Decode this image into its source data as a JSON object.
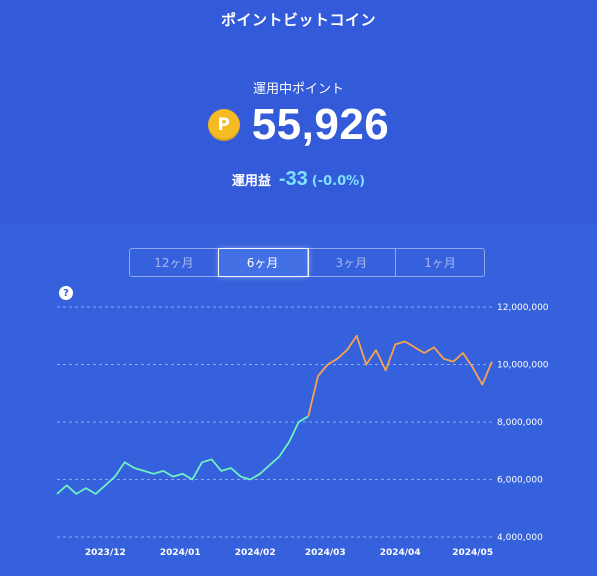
{
  "header": {
    "title": "ポイントビットコイン"
  },
  "summary": {
    "label": "運用中ポイント",
    "coin_symbol": "P",
    "points": "55,926",
    "gain_label": "運用益",
    "gain_value": "-33",
    "gain_pct": "(-0.0%)",
    "colors": {
      "coin": "#f5bb25",
      "gain": "#7ee0ff"
    }
  },
  "tabs": [
    {
      "label": "12ヶ月",
      "active": false
    },
    {
      "label": "6ヶ月",
      "active": true
    },
    {
      "label": "3ヶ月",
      "active": false
    },
    {
      "label": "1ヶ月",
      "active": false
    }
  ],
  "help_icon": "?",
  "chart_data": {
    "type": "line",
    "y_ticks": [
      "12,000,000",
      "10,000,000",
      "8,000,000",
      "6,000,000",
      "4,000,000"
    ],
    "x_ticks": [
      "2023/12",
      "2024/01",
      "2024/02",
      "2024/03",
      "2024/04",
      "2024/05"
    ],
    "ylim": [
      4000000,
      12000000
    ],
    "grid": true,
    "series": [
      {
        "color": "#6ff0c2",
        "x": [
          "2023/11/11",
          "2023/11/15",
          "2023/11/19",
          "2023/11/23",
          "2023/11/27",
          "2023/12/01",
          "2023/12/05",
          "2023/12/09",
          "2023/12/13",
          "2023/12/17",
          "2023/12/21",
          "2023/12/25",
          "2023/12/29",
          "2024/01/02",
          "2024/01/06",
          "2024/01/10",
          "2024/01/14",
          "2024/01/18",
          "2024/01/22",
          "2024/01/26",
          "2024/01/30",
          "2024/02/03",
          "2024/02/07",
          "2024/02/11",
          "2024/02/15",
          "2024/02/19",
          "2024/02/23"
        ],
        "values": [
          5500000,
          5800000,
          5500000,
          5700000,
          5500000,
          5800000,
          6100000,
          6600000,
          6400000,
          6300000,
          6200000,
          6300000,
          6100000,
          6200000,
          6000000,
          6600000,
          6700000,
          6300000,
          6400000,
          6100000,
          6000000,
          6200000,
          6500000,
          6800000,
          7300000,
          8000000,
          8200000
        ]
      },
      {
        "color": "#f6a250",
        "x": [
          "2024/02/27",
          "2024/03/02",
          "2024/03/06",
          "2024/03/10",
          "2024/03/14",
          "2024/03/18",
          "2024/03/22",
          "2024/03/26",
          "2024/03/30",
          "2024/04/03",
          "2024/04/07",
          "2024/04/11",
          "2024/04/15",
          "2024/04/19",
          "2024/04/23",
          "2024/04/27",
          "2024/05/01",
          "2024/05/05",
          "2024/05/09"
        ],
        "values": [
          9600000,
          10000000,
          10200000,
          10500000,
          11000000,
          10000000,
          10500000,
          9800000,
          10700000,
          10800000,
          10600000,
          10400000,
          10600000,
          10200000,
          10100000,
          10400000,
          9900000,
          9300000,
          10100000
        ]
      }
    ]
  }
}
